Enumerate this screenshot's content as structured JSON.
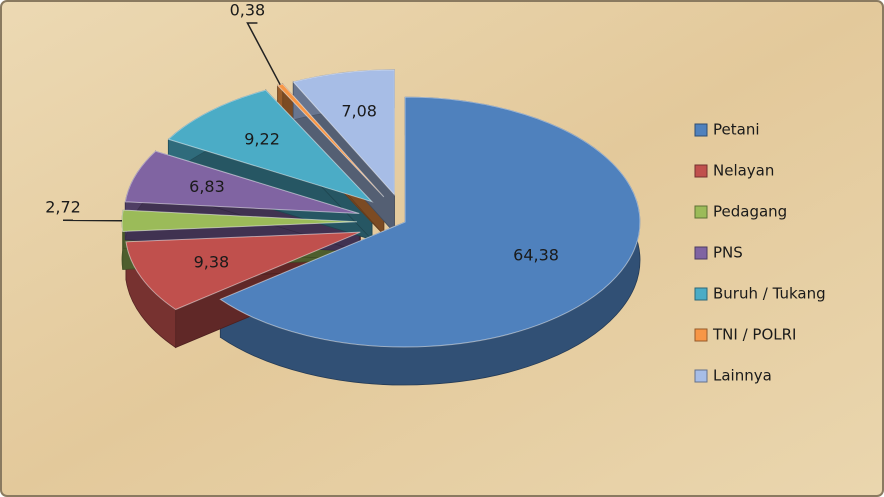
{
  "chart_data": {
    "type": "pie",
    "categories": [
      "Petani",
      "Nelayan",
      "Pedagang",
      "PNS",
      "Buruh / Tukang",
      "TNI / POLRI",
      "Lainnya"
    ],
    "values": [
      64.38,
      9.38,
      2.72,
      6.83,
      9.22,
      0.38,
      7.08
    ],
    "value_labels": [
      "64,38",
      "9,38",
      "2,72",
      "6,83",
      "9,22",
      "0,38",
      "7,08"
    ],
    "colors": [
      "#4f81bd",
      "#c0504d",
      "#9bbb59",
      "#8064a2",
      "#4bacc6",
      "#f79646",
      "#a7bde6"
    ],
    "legend": "right"
  }
}
